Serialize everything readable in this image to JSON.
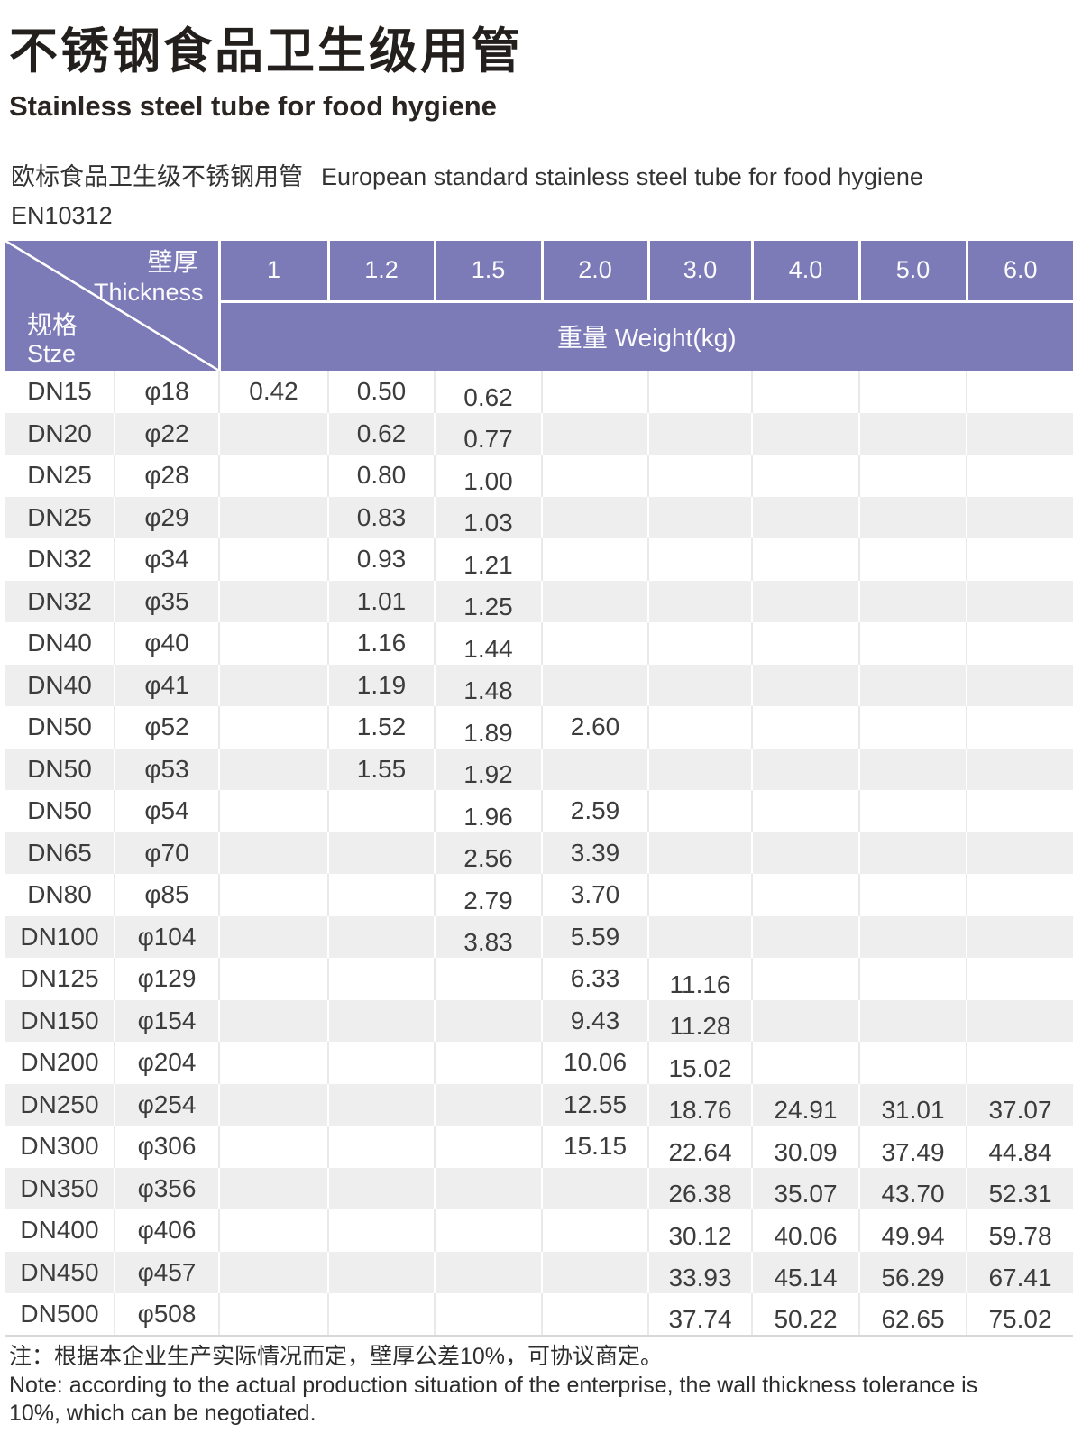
{
  "header": {
    "title_zh": "不锈钢食品卫生级用管",
    "title_en": "Stainless steel tube for food hygiene",
    "subtitle_zh": "欧标食品卫生级不锈钢用管",
    "subtitle_en": "European standard stainless steel tube for food hygiene",
    "standard": "EN10312"
  },
  "table": {
    "corner": {
      "thickness_zh": "壁厚",
      "thickness_en": "Thickness",
      "size_zh": "规格",
      "size_en": "Stze"
    },
    "thickness_columns": [
      "1",
      "1.2",
      "1.5",
      "2.0",
      "3.0",
      "4.0",
      "5.0",
      "6.0"
    ],
    "weight_header": "重量 Weight(kg)",
    "rows": [
      {
        "size": "DN15",
        "diameter": "φ18",
        "weights": [
          "0.42",
          "0.50",
          "0.62",
          "",
          "",
          "",
          "",
          ""
        ]
      },
      {
        "size": "DN20",
        "diameter": "φ22",
        "weights": [
          "",
          "0.62",
          "0.77",
          "",
          "",
          "",
          "",
          ""
        ]
      },
      {
        "size": "DN25",
        "diameter": "φ28",
        "weights": [
          "",
          "0.80",
          "1.00",
          "",
          "",
          "",
          "",
          ""
        ]
      },
      {
        "size": "DN25",
        "diameter": "φ29",
        "weights": [
          "",
          "0.83",
          "1.03",
          "",
          "",
          "",
          "",
          ""
        ]
      },
      {
        "size": "DN32",
        "diameter": "φ34",
        "weights": [
          "",
          "0.93",
          "1.21",
          "",
          "",
          "",
          "",
          ""
        ]
      },
      {
        "size": "DN32",
        "diameter": "φ35",
        "weights": [
          "",
          "1.01",
          "1.25",
          "",
          "",
          "",
          "",
          ""
        ]
      },
      {
        "size": "DN40",
        "diameter": "φ40",
        "weights": [
          "",
          "1.16",
          "1.44",
          "",
          "",
          "",
          "",
          ""
        ]
      },
      {
        "size": "DN40",
        "diameter": "φ41",
        "weights": [
          "",
          "1.19",
          "1.48",
          "",
          "",
          "",
          "",
          ""
        ]
      },
      {
        "size": "DN50",
        "diameter": "φ52",
        "weights": [
          "",
          "1.52",
          "1.89",
          "2.60",
          "",
          "",
          "",
          ""
        ]
      },
      {
        "size": "DN50",
        "diameter": "φ53",
        "weights": [
          "",
          "1.55",
          "1.92",
          "",
          "",
          "",
          "",
          ""
        ]
      },
      {
        "size": "DN50",
        "diameter": "φ54",
        "weights": [
          "",
          "",
          "1.96",
          "2.59",
          "",
          "",
          "",
          ""
        ]
      },
      {
        "size": "DN65",
        "diameter": "φ70",
        "weights": [
          "",
          "",
          "2.56",
          "3.39",
          "",
          "",
          "",
          ""
        ]
      },
      {
        "size": "DN80",
        "diameter": "φ85",
        "weights": [
          "",
          "",
          "2.79",
          "3.70",
          "",
          "",
          "",
          ""
        ]
      },
      {
        "size": "DN100",
        "diameter": "φ104",
        "weights": [
          "",
          "",
          "3.83",
          "5.59",
          "",
          "",
          "",
          ""
        ]
      },
      {
        "size": "DN125",
        "diameter": "φ129",
        "weights": [
          "",
          "",
          "",
          "6.33",
          "11.16",
          "",
          "",
          ""
        ]
      },
      {
        "size": "DN150",
        "diameter": "φ154",
        "weights": [
          "",
          "",
          "",
          "9.43",
          "11.28",
          "",
          "",
          ""
        ]
      },
      {
        "size": "DN200",
        "diameter": "φ204",
        "weights": [
          "",
          "",
          "",
          "10.06",
          "15.02",
          "",
          "",
          ""
        ]
      },
      {
        "size": "DN250",
        "diameter": "φ254",
        "weights": [
          "",
          "",
          "",
          "12.55",
          "18.76",
          "24.91",
          "31.01",
          "37.07"
        ]
      },
      {
        "size": "DN300",
        "diameter": "φ306",
        "weights": [
          "",
          "",
          "",
          "15.15",
          "22.64",
          "30.09",
          "37.49",
          "44.84"
        ]
      },
      {
        "size": "DN350",
        "diameter": "φ356",
        "weights": [
          "",
          "",
          "",
          "",
          "26.38",
          "35.07",
          "43.70",
          "52.31"
        ]
      },
      {
        "size": "DN400",
        "diameter": "φ406",
        "weights": [
          "",
          "",
          "",
          "",
          "30.12",
          "40.06",
          "49.94",
          "59.78"
        ]
      },
      {
        "size": "DN450",
        "diameter": "φ457",
        "weights": [
          "",
          "",
          "",
          "",
          "33.93",
          "45.14",
          "56.29",
          "67.41"
        ]
      },
      {
        "size": "DN500",
        "diameter": "φ508",
        "weights": [
          "",
          "",
          "",
          "",
          "37.74",
          "50.22",
          "62.65",
          "75.02"
        ]
      }
    ]
  },
  "notes": {
    "zh": "注：根据本企业生产实际情况而定，壁厚公差10%，可协议商定。",
    "en": "Note: according to the actual production situation of the enterprise, the wall thickness tolerance is 10%, which can be negotiated."
  },
  "colors": {
    "header_purple": "#7c7ab7",
    "stripe_gray": "#eeeeee"
  }
}
